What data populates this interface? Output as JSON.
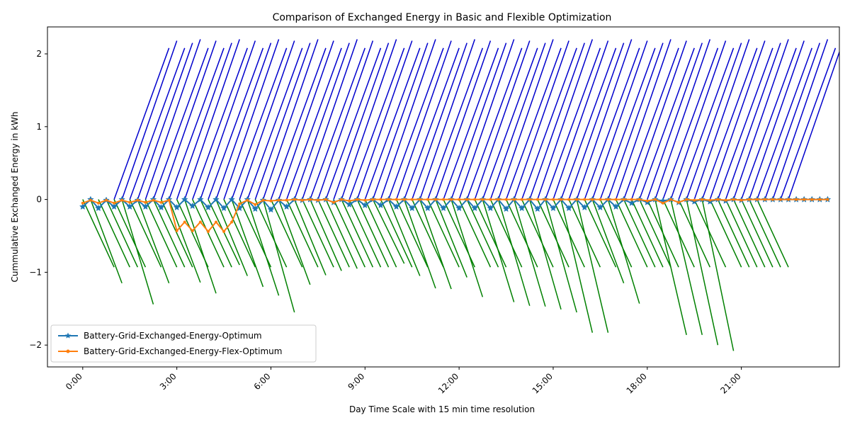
{
  "chart_data": {
    "type": "line",
    "title": "Comparison of Exchanged Energy in Basic and Flexible Optimization",
    "xlabel": "Day Time Scale with 15 min time resolution",
    "ylabel": "Cummulative Exchanged Energy in kWh",
    "x_unit": "hours",
    "xlim": [
      -1.125,
      24.125
    ],
    "ylim": [
      -2.3,
      2.37
    ],
    "xticks": [
      {
        "value": 0,
        "label": "0:00"
      },
      {
        "value": 3,
        "label": "3:00"
      },
      {
        "value": 6,
        "label": "6:00"
      },
      {
        "value": 9,
        "label": "9:00"
      },
      {
        "value": 12,
        "label": "12:00"
      },
      {
        "value": 15,
        "label": "15:00"
      },
      {
        "value": 18,
        "label": "18:00"
      },
      {
        "value": 21,
        "label": "21:00"
      }
    ],
    "yticks": [
      {
        "value": -2,
        "label": "−2"
      },
      {
        "value": -1,
        "label": "−1"
      },
      {
        "value": 0,
        "label": "0"
      },
      {
        "value": 1,
        "label": "1"
      },
      {
        "value": 2,
        "label": "2"
      }
    ],
    "legend": {
      "placement": "lower-left",
      "entries": [
        {
          "label": "Battery-Grid-Exchanged-Energy-Optimum",
          "color": "#1f77b4",
          "marker": "star"
        },
        {
          "label": "Battery-Grid-Exchanged-Energy-Flex-Optimum",
          "color": "#ff7f0e",
          "marker": "circle"
        }
      ]
    },
    "series": [
      {
        "name": "Battery-Grid-Exchanged-Energy-Optimum",
        "color": "#1f77b4",
        "marker": "star",
        "x": [
          0,
          0.25,
          0.5,
          0.75,
          1,
          1.25,
          1.5,
          1.75,
          2,
          2.25,
          2.5,
          2.75,
          3,
          3.25,
          3.5,
          3.75,
          4,
          4.25,
          4.5,
          4.75,
          5,
          5.25,
          5.5,
          5.75,
          6,
          6.25,
          6.5,
          6.75,
          7,
          7.25,
          7.5,
          7.75,
          8,
          8.25,
          8.5,
          8.75,
          9,
          9.25,
          9.5,
          9.75,
          10,
          10.25,
          10.5,
          10.75,
          11,
          11.25,
          11.5,
          11.75,
          12,
          12.25,
          12.5,
          12.75,
          13,
          13.25,
          13.5,
          13.75,
          14,
          14.25,
          14.5,
          14.75,
          15,
          15.25,
          15.5,
          15.75,
          16,
          16.25,
          16.5,
          16.75,
          17,
          17.25,
          17.5,
          17.75,
          18,
          18.25,
          18.5,
          18.75,
          19,
          19.25,
          19.5,
          19.75,
          20,
          20.25,
          20.5,
          20.75,
          21,
          21.25,
          21.5,
          21.75,
          22,
          22.25,
          22.5,
          22.75,
          23,
          23.25,
          23.5,
          23.75
        ],
        "values": [
          -0.1,
          0,
          -0.12,
          -0.01,
          -0.1,
          0,
          -0.1,
          -0.01,
          -0.1,
          0,
          -0.11,
          0,
          -0.11,
          0,
          -0.09,
          0,
          -0.11,
          0,
          -0.12,
          0,
          -0.12,
          0,
          -0.13,
          -0.01,
          -0.14,
          -0.01,
          -0.1,
          0,
          -0.01,
          0,
          -0.01,
          0,
          -0.04,
          0,
          -0.07,
          0,
          -0.08,
          0,
          -0.08,
          0,
          -0.1,
          0,
          -0.12,
          0,
          -0.12,
          0,
          -0.12,
          0,
          -0.12,
          0,
          -0.12,
          0,
          -0.12,
          0,
          -0.13,
          0,
          -0.12,
          0,
          -0.13,
          0,
          -0.12,
          0,
          -0.12,
          0,
          -0.11,
          0,
          -0.11,
          0,
          -0.1,
          0,
          -0.05,
          0,
          -0.04,
          0,
          -0.02,
          0,
          -0.04,
          0,
          -0.03,
          0,
          -0.03,
          0,
          -0.02,
          0,
          -0.01,
          0,
          0,
          0,
          0,
          0,
          0,
          0,
          0,
          0,
          0,
          0
        ]
      },
      {
        "name": "Battery-Grid-Exchanged-Energy-Flex-Optimum",
        "color": "#ff7f0e",
        "marker": "circle",
        "x": [
          0,
          0.25,
          0.5,
          0.75,
          1,
          1.25,
          1.5,
          1.75,
          2,
          2.25,
          2.5,
          2.75,
          3,
          3.25,
          3.5,
          3.75,
          4,
          4.25,
          4.5,
          4.75,
          5,
          5.25,
          5.5,
          5.75,
          6,
          6.25,
          6.5,
          6.75,
          7,
          7.25,
          7.5,
          7.75,
          8,
          8.25,
          8.5,
          8.75,
          9,
          9.25,
          9.5,
          9.75,
          10,
          10.25,
          10.5,
          10.75,
          11,
          11.25,
          11.5,
          11.75,
          12,
          12.25,
          12.5,
          12.75,
          13,
          13.25,
          13.5,
          13.75,
          14,
          14.25,
          14.5,
          14.75,
          15,
          15.25,
          15.5,
          15.75,
          16,
          16.25,
          16.5,
          16.75,
          17,
          17.25,
          17.5,
          17.75,
          18,
          18.25,
          18.5,
          18.75,
          19,
          19.25,
          19.5,
          19.75,
          20,
          20.25,
          20.5,
          20.75,
          21,
          21.25,
          21.5,
          21.75,
          22,
          22.25,
          22.5,
          22.75,
          23,
          23.25,
          23.5,
          23.75
        ],
        "values": [
          -0.05,
          -0.01,
          -0.05,
          -0.01,
          -0.05,
          -0.01,
          -0.04,
          -0.01,
          -0.04,
          -0.01,
          -0.04,
          -0.01,
          -0.43,
          -0.31,
          -0.43,
          -0.31,
          -0.44,
          -0.31,
          -0.44,
          -0.31,
          -0.06,
          -0.01,
          -0.07,
          -0.01,
          -0.02,
          -0.01,
          -0.01,
          0,
          -0.01,
          0,
          -0.01,
          0,
          -0.04,
          0,
          -0.02,
          0,
          -0.01,
          0,
          0,
          0,
          0,
          0,
          0,
          0,
          0,
          0,
          0,
          0,
          0,
          0,
          0,
          0,
          0,
          0,
          0,
          0,
          0,
          0,
          0,
          0,
          0,
          0,
          0,
          0,
          0,
          0,
          0,
          0,
          0,
          0,
          0,
          0,
          -0.02,
          0,
          -0.05,
          0,
          -0.04,
          0,
          -0.01,
          0,
          -0.01,
          0,
          -0.01,
          0,
          -0.01,
          0,
          0,
          0,
          0,
          0,
          0,
          0,
          0,
          0,
          0,
          0
        ]
      }
    ],
    "extra_lines": {
      "charge_segments": {
        "color": "#0000cd",
        "start_times": [
          1,
          1.25,
          1.5,
          1.75,
          2,
          2.25,
          2.5,
          2.75,
          3,
          3.25,
          3.5,
          3.75,
          4,
          4.25,
          4.5,
          4.75,
          5,
          5.25,
          5.5,
          5.75,
          6,
          6.25,
          6.5,
          6.75,
          7,
          7.25,
          7.5,
          7.75,
          8,
          8.25,
          8.5,
          8.75,
          9,
          9.25,
          9.5,
          9.75,
          10,
          10.25,
          10.5,
          10.75,
          11,
          11.25,
          11.5,
          11.75,
          12,
          12.25,
          12.5,
          12.75,
          13,
          13.25,
          13.5,
          13.75,
          14,
          14.25,
          14.5,
          14.75,
          15,
          15.25,
          15.5,
          15.75,
          16,
          16.25,
          16.5,
          16.75,
          17,
          17.25,
          17.5,
          17.75,
          18,
          18.25,
          18.5,
          18.75,
          19,
          19.25,
          19.5,
          19.75,
          20,
          20.25,
          20.5,
          20.75,
          21,
          21.25,
          21.5,
          21.75,
          22,
          22.25,
          22.5
        ],
        "end_times": [
          2.75,
          3,
          3.25,
          3.5,
          3.75,
          4,
          4.25,
          4.5,
          4.75,
          5,
          5.25,
          5.5,
          5.75,
          6,
          6.25,
          6.5,
          6.75,
          7,
          7.25,
          7.5,
          7.75,
          8,
          8.25,
          8.5,
          8.75,
          9,
          9.25,
          9.5,
          9.75,
          10,
          10.25,
          10.5,
          10.75,
          11,
          11.25,
          11.5,
          11.75,
          12,
          12.25,
          12.5,
          12.75,
          13,
          13.25,
          13.5,
          13.75,
          14,
          14.25,
          14.5,
          14.75,
          15,
          15.25,
          15.5,
          15.75,
          16,
          16.25,
          16.5,
          16.75,
          17,
          17.25,
          17.5,
          17.75,
          18,
          18.25,
          18.5,
          18.75,
          19,
          19.25,
          19.5,
          19.75,
          20,
          20.25,
          20.5,
          20.75,
          21,
          21.25,
          21.5,
          21.75,
          22,
          22.25,
          22.5,
          22.75,
          23,
          23.25,
          23.5,
          23.75,
          24,
          24.25,
          24.5,
          24.75
        ],
        "end_values": [
          2.08,
          2.18,
          2.08,
          2.15,
          2.2,
          2.08,
          2.18,
          2.08,
          2.15,
          2.2,
          2.08,
          2.18,
          2.08,
          2.15,
          2.2,
          2.08,
          2.18,
          2.08,
          2.15,
          2.2,
          2.08,
          2.18,
          2.08,
          2.15,
          2.2,
          2.08,
          2.18,
          2.08,
          2.15,
          2.2,
          2.08,
          2.18,
          2.08,
          2.15,
          2.2,
          2.08,
          2.18,
          2.08,
          2.15,
          2.2,
          2.08,
          2.18,
          2.08,
          2.15,
          2.2,
          2.08,
          2.18,
          2.08,
          2.15,
          2.2,
          2.08,
          2.18,
          2.08,
          2.15,
          2.2,
          2.08,
          2.18,
          2.08,
          2.15,
          2.2,
          2.08,
          2.18,
          2.08,
          2.15,
          2.2,
          2.08,
          2.18,
          2.08,
          2.15,
          2.2,
          2.08,
          2.18,
          2.08,
          2.15,
          2.2,
          2.08,
          2.18,
          2.08,
          2.15,
          2.2,
          2.08,
          2.18,
          2.08,
          2.15,
          2.2,
          2.08,
          2.18
        ]
      },
      "discharge_segments": {
        "color": "#008000",
        "start_times": [
          0,
          0.25,
          0.5,
          0.75,
          1,
          1.25,
          1.5,
          1.75,
          2,
          2.25,
          2.5,
          2.75,
          3,
          3.25,
          3.5,
          3.75,
          4,
          4.25,
          4.5,
          4.75,
          5,
          5.25,
          5.5,
          5.75,
          6,
          6.25,
          6.5,
          6.75,
          7,
          7.25,
          7.5,
          7.75,
          8,
          8.25,
          8.5,
          8.75,
          9,
          9.25,
          9.5,
          9.75,
          10,
          10.25,
          10.5,
          10.75,
          11,
          11.25,
          11.5,
          11.75,
          12,
          12.25,
          12.5,
          12.75,
          13,
          13.25,
          13.5,
          13.75,
          14,
          14.25,
          14.5,
          14.75,
          15,
          15.25,
          15.5,
          15.75,
          16,
          16.25,
          16.5,
          16.75,
          17,
          17.25,
          17.5,
          17.75,
          18,
          18.25,
          18.5,
          18.75,
          19,
          19.25,
          19.5,
          19.75,
          20,
          20.25,
          20.5,
          20.75,
          21,
          21.25,
          21.5
        ],
        "end_times": [
          1,
          1.25,
          1.5,
          1.75,
          2,
          2.25,
          2.5,
          2.75,
          3,
          3.25,
          3.5,
          3.75,
          4,
          4.25,
          4.5,
          4.75,
          5,
          5.25,
          5.5,
          5.75,
          6,
          6.25,
          6.5,
          6.75,
          7,
          7.25,
          7.5,
          7.75,
          8,
          8.25,
          8.5,
          8.75,
          9,
          9.25,
          9.5,
          9.75,
          10,
          10.25,
          10.5,
          10.75,
          11,
          11.25,
          11.5,
          11.75,
          12,
          12.25,
          12.5,
          12.75,
          13,
          13.25,
          13.5,
          13.75,
          14,
          14.25,
          14.5,
          14.75,
          15,
          15.25,
          15.5,
          15.75,
          16,
          16.25,
          16.5,
          16.75,
          17,
          17.25,
          17.5,
          17.75,
          18,
          18.25,
          18.5,
          18.75,
          19,
          19.25,
          19.5,
          19.75,
          20,
          20.25,
          20.5,
          20.75,
          21,
          21.25,
          21.5,
          21.75,
          22,
          22.25,
          22.5
        ],
        "end_values": [
          -0.93,
          -1.15,
          -0.93,
          -0.93,
          -0.93,
          -1.44,
          -0.93,
          -1.15,
          -0.93,
          -0.93,
          -0.93,
          -1.14,
          -0.93,
          -1.29,
          -0.93,
          -0.93,
          -0.9,
          -1.05,
          -0.93,
          -1.2,
          -0.93,
          -1.32,
          -0.93,
          -1.55,
          -0.93,
          -1.17,
          -0.93,
          -1.04,
          -0.93,
          -0.98,
          -0.93,
          -0.95,
          -0.93,
          -0.93,
          -0.93,
          -0.93,
          -0.93,
          -0.88,
          -0.93,
          -1.05,
          -0.93,
          -1.22,
          -0.93,
          -1.23,
          -0.93,
          -1.07,
          -0.93,
          -1.34,
          -0.93,
          -0.93,
          -0.93,
          -1.41,
          -0.93,
          -1.46,
          -0.93,
          -1.47,
          -0.93,
          -1.51,
          -0.93,
          -1.55,
          -0.93,
          -1.83,
          -0.93,
          -1.83,
          -0.93,
          -1.15,
          -0.93,
          -1.43,
          -0.93,
          -0.93,
          -0.93,
          -0.93,
          -0.93,
          -1.86,
          -0.93,
          -1.86,
          -0.93,
          -2.0,
          -0.93,
          -2.08,
          -0.93,
          -0.93,
          -0.93,
          -0.93,
          -0.93,
          -0.93,
          -0.93
        ]
      }
    }
  }
}
